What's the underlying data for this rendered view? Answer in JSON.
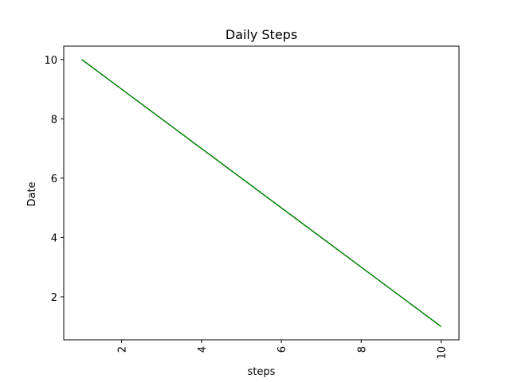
{
  "chart_data": {
    "type": "line",
    "title": "Daily Steps",
    "xlabel": "steps",
    "ylabel": "Date",
    "x": [
      1,
      2,
      3,
      4,
      5,
      6,
      7,
      8,
      9,
      10
    ],
    "series": [
      {
        "values": [
          10,
          9,
          8,
          7,
          6,
          5,
          4,
          3,
          2,
          1
        ],
        "color": "#008000"
      }
    ],
    "xlim": [
      0.55,
      10.45
    ],
    "ylim": [
      0.55,
      10.45
    ],
    "x_ticks": [
      2,
      4,
      6,
      8,
      10
    ],
    "y_ticks": [
      2,
      4,
      6,
      8,
      10
    ],
    "x_tick_rotation": "vertical",
    "grid": false,
    "legend": "none"
  }
}
